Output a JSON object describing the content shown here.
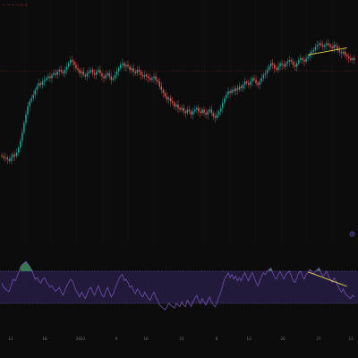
{
  "chart": {
    "symbol_legend": "— — • — (—)",
    "colors": {
      "background": "#0c0c0c",
      "grid": "#151515",
      "bull": "#26a69a",
      "bear": "#ef5350",
      "wick": "#9a9a9a",
      "trendline": "#e8d44d",
      "rsi_line": "#7e57c2",
      "rsi_band": "#2a1f4a",
      "rsi_band_border": "#6f5fa8",
      "rsi_overbought_fill": "#3d8c5a",
      "reference_line": "#7a2222"
    },
    "icons": {
      "pane_settings": "gear-icon"
    },
    "time_axis_ticks": [
      "11",
      "18",
      "2023",
      "9",
      "16",
      "23",
      "8",
      "13",
      "20",
      "27",
      "13",
      "20",
      "27"
    ]
  },
  "chart_data": [
    {
      "type": "candlestick",
      "title": "",
      "xlabel": "",
      "ylabel": "",
      "grid": true,
      "legend": "top-left",
      "ylim": [
        0,
        100
      ],
      "close": [
        22,
        21,
        21,
        20,
        19,
        21,
        23,
        22,
        24,
        27,
        31,
        36,
        42,
        47,
        52,
        55,
        57,
        59,
        62,
        64,
        66,
        65,
        67,
        68,
        69,
        70,
        69,
        71,
        72,
        71,
        73,
        74,
        73,
        72,
        74,
        76,
        78,
        80,
        79,
        77,
        75,
        74,
        72,
        73,
        71,
        70,
        72,
        73,
        74,
        72,
        71,
        73,
        74,
        72,
        70,
        69,
        71,
        72,
        70,
        68,
        69,
        71,
        73,
        75,
        77,
        78,
        76,
        77,
        76,
        74,
        75,
        73,
        72,
        74,
        73,
        71,
        70,
        71,
        70,
        69,
        68,
        69,
        70,
        68,
        67,
        64,
        62,
        60,
        58,
        56,
        57,
        55,
        54,
        52,
        53,
        51,
        50,
        51,
        49,
        48,
        50,
        49,
        47,
        49,
        50,
        51,
        49,
        48,
        50,
        48,
        47,
        49,
        50,
        48,
        46,
        45,
        47,
        49,
        51,
        54,
        57,
        59,
        61,
        60,
        62,
        61,
        63,
        62,
        64,
        63,
        65,
        67,
        66,
        65,
        67,
        69,
        68,
        66,
        65,
        67,
        69,
        71,
        72,
        74,
        76,
        78,
        77,
        75,
        74,
        76,
        78,
        77,
        76,
        78,
        79,
        80,
        79,
        77,
        76,
        78,
        80,
        81,
        80,
        79,
        81,
        82,
        84,
        85,
        86,
        88,
        89,
        90,
        89,
        88,
        89,
        90,
        89,
        88,
        87,
        89,
        88,
        86,
        85,
        84,
        85,
        83,
        82,
        81,
        80,
        81,
        80
      ]
    },
    {
      "type": "line",
      "title": "",
      "xlabel": "",
      "ylabel": "",
      "grid": false,
      "ylim": [
        0,
        100
      ],
      "bands": [
        30,
        70
      ],
      "values": [
        55,
        50,
        48,
        46,
        45,
        52,
        60,
        58,
        62,
        68,
        75,
        78,
        80,
        82,
        79,
        76,
        72,
        66,
        60,
        62,
        58,
        55,
        60,
        62,
        57,
        54,
        50,
        52,
        48,
        45,
        47,
        50,
        44,
        40,
        46,
        52,
        56,
        60,
        58,
        52,
        46,
        42,
        38,
        44,
        40,
        36,
        42,
        48,
        50,
        44,
        40,
        46,
        52,
        46,
        40,
        38,
        45,
        50,
        44,
        38,
        42,
        48,
        54,
        60,
        64,
        66,
        58,
        60,
        56,
        50,
        52,
        46,
        42,
        48,
        45,
        40,
        38,
        44,
        40,
        36,
        34,
        40,
        44,
        38,
        34,
        28,
        26,
        24,
        22,
        26,
        30,
        28,
        26,
        24,
        30,
        28,
        26,
        32,
        28,
        26,
        34,
        30,
        26,
        32,
        36,
        40,
        34,
        30,
        36,
        32,
        28,
        34,
        38,
        32,
        28,
        26,
        32,
        38,
        44,
        52,
        60,
        64,
        68,
        62,
        66,
        60,
        64,
        58,
        62,
        58,
        64,
        68,
        62,
        58,
        64,
        68,
        62,
        56,
        52,
        58,
        64,
        68,
        66,
        70,
        72,
        74,
        68,
        62,
        60,
        66,
        70,
        64,
        60,
        66,
        68,
        70,
        64,
        58,
        56,
        62,
        68,
        70,
        64,
        60,
        66,
        68,
        72,
        70,
        66,
        70,
        72,
        74,
        68,
        64,
        66,
        70,
        64,
        60,
        56,
        62,
        58,
        52,
        48,
        44,
        48,
        42,
        40,
        38,
        36,
        40,
        38
      ]
    }
  ]
}
